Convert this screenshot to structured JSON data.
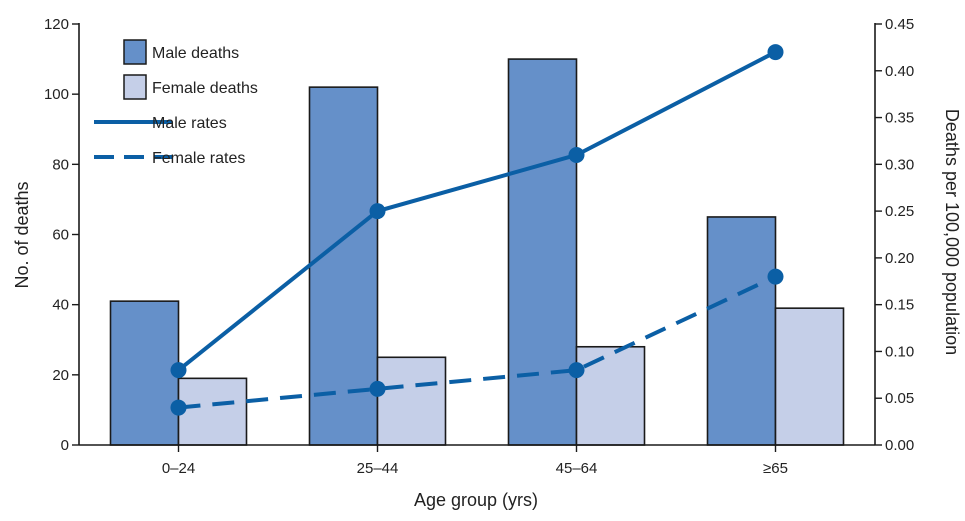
{
  "chart_data": {
    "type": "bar",
    "categories": [
      "0–24",
      "25–44",
      "45–64",
      "≥65"
    ],
    "xlabel": "Age group (yrs)",
    "ylabel": "No. of deaths",
    "y2label": "Deaths per 100,000 population",
    "ylim": [
      0,
      120
    ],
    "y2lim": [
      0,
      0.45
    ],
    "yticks": [
      "0",
      "20",
      "40",
      "60",
      "80",
      "100",
      "120"
    ],
    "y2ticks": [
      "0.00",
      "0.05",
      "0.10",
      "0.15",
      "0.20",
      "0.25",
      "0.30",
      "0.35",
      "0.40",
      "0.45"
    ],
    "grid": false,
    "legend_position": "top-left",
    "series": [
      {
        "name": "Male deaths",
        "kind": "bar",
        "axis": "left",
        "values": [
          41,
          102,
          110,
          65
        ],
        "color": "#6590c9"
      },
      {
        "name": "Female deaths",
        "kind": "bar",
        "axis": "left",
        "values": [
          19,
          25,
          28,
          39
        ],
        "color": "#c5cfe8"
      },
      {
        "name": "Male rates",
        "kind": "line",
        "style": "solid",
        "axis": "right",
        "values": [
          0.08,
          0.25,
          0.31,
          0.42
        ],
        "color": "#0b5fa5"
      },
      {
        "name": "Female rates",
        "kind": "line",
        "style": "dashed",
        "axis": "right",
        "values": [
          0.04,
          0.06,
          0.08,
          0.18
        ],
        "color": "#0b5fa5"
      }
    ]
  }
}
